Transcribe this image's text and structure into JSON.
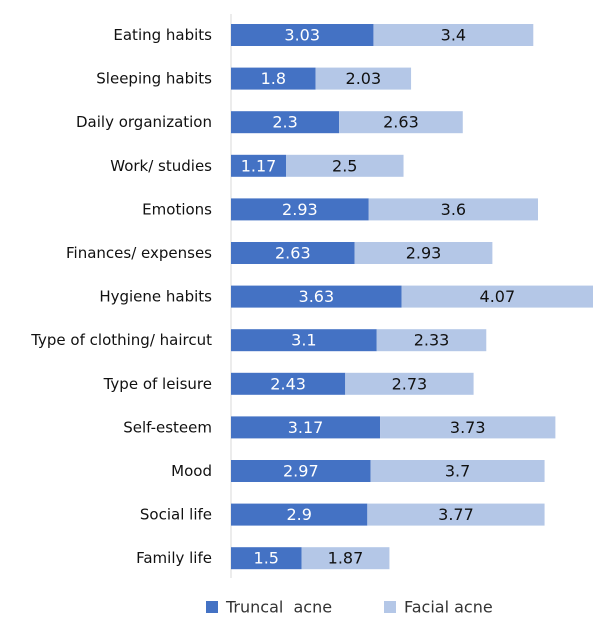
{
  "chart_data": {
    "type": "bar",
    "orientation": "horizontal",
    "stacked": true,
    "categories": [
      "Eating habits",
      "Sleeping habits",
      "Daily organization",
      "Work/ studies",
      "Emotions",
      "Finances/ expenses",
      "Hygiene habits",
      "Type of clothing/ haircut",
      "Type of leisure",
      "Self-esteem",
      "Mood",
      "Social life",
      "Family life"
    ],
    "series": [
      {
        "name": "Truncal  acne",
        "color": "#4472C4",
        "label_color": "#ffffff",
        "values": [
          3.03,
          1.8,
          2.3,
          1.17,
          2.93,
          2.63,
          3.63,
          3.1,
          2.43,
          3.17,
          2.97,
          2.9,
          1.5
        ],
        "labels": [
          "3.03",
          "1.8",
          "2.3",
          "1.17",
          "2.93",
          "2.63",
          "3.63",
          "3.1",
          "2.43",
          "3.17",
          "2.97",
          "2.9",
          "1.5"
        ]
      },
      {
        "name": "Facial acne",
        "color": "#B4C7E7",
        "label_color": "#111111",
        "values": [
          3.4,
          2.03,
          2.63,
          2.5,
          3.6,
          2.93,
          4.07,
          2.33,
          2.73,
          3.73,
          3.7,
          3.77,
          1.87
        ],
        "labels": [
          "3.4",
          "2.03",
          "2.63",
          "2.5",
          "3.6",
          "2.93",
          "4.07",
          "2.33",
          "2.73",
          "3.73",
          "3.7",
          "3.77",
          "1.87"
        ]
      }
    ],
    "xlim": [
      0,
      7.7
    ],
    "grid": false,
    "legend_position": "bottom"
  }
}
